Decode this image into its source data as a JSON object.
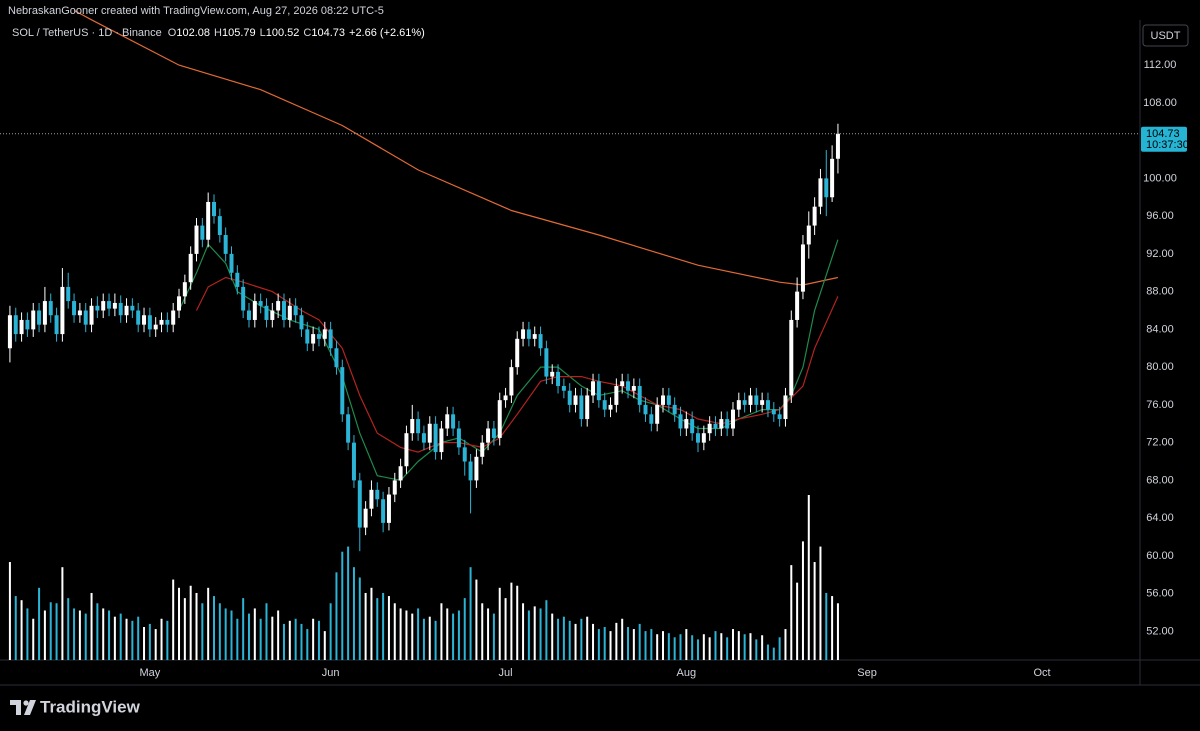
{
  "chart_data": {
    "type": "candlestick",
    "header": "NebraskanGooner created with TradingView.com, Aug 27, 2026 08:22 UTC-5",
    "title": "SOL / TetherUS · 1D · Binance",
    "ohlc_labels": [
      "O",
      "H",
      "L",
      "C"
    ],
    "change": "+2.66 (+2.61%)",
    "currency": "USDT",
    "countdown": "10:37:30",
    "brand": "TradingView",
    "up_color": "#ffffff",
    "down_color": "#2bb4d6",
    "ylim": [
      48.97,
      118.9
    ],
    "yticks": [
      {
        "value": 52,
        "label": "52.00"
      },
      {
        "value": 56,
        "label": "56.00"
      },
      {
        "value": 60,
        "label": "60.00"
      },
      {
        "value": 64,
        "label": "64.00"
      },
      {
        "value": 68,
        "label": "68.00"
      },
      {
        "value": 72,
        "label": "72.00"
      },
      {
        "value": 76,
        "label": "76.00"
      },
      {
        "value": 80,
        "label": "80.00"
      },
      {
        "value": 84,
        "label": "84.00"
      },
      {
        "value": 88,
        "label": "88.00"
      },
      {
        "value": 92,
        "label": "92.00"
      },
      {
        "value": 96,
        "label": "96.00"
      },
      {
        "value": 100,
        "label": "100.00"
      },
      {
        "value": 108,
        "label": "108.00"
      },
      {
        "value": 112,
        "label": "112.00"
      }
    ],
    "xlim": [
      -1.7,
      193.8
    ],
    "xticks": [
      {
        "value": 24,
        "label": "May"
      },
      {
        "value": 55,
        "label": "Jun"
      },
      {
        "value": 85,
        "label": "Jul"
      },
      {
        "value": 116,
        "label": "Aug"
      },
      {
        "value": 147,
        "label": "Sep"
      },
      {
        "value": 177,
        "label": "Oct"
      }
    ],
    "ohlc": [
      [
        82,
        86.5,
        80.5,
        85.5
      ],
      [
        85.5,
        86.3,
        82.7,
        83.5
      ],
      [
        83.5,
        85.8,
        82.7,
        85
      ],
      [
        85,
        85.8,
        83.2,
        84
      ],
      [
        84,
        86.8,
        83.2,
        86
      ],
      [
        86,
        86.8,
        83.7,
        84.5
      ],
      [
        84.5,
        88.5,
        83.7,
        87
      ],
      [
        87,
        87.8,
        84.7,
        85.5
      ],
      [
        85.5,
        86.3,
        82.7,
        83.5
      ],
      [
        83.5,
        90.5,
        82.7,
        88.5
      ],
      [
        88.5,
        90,
        86.2,
        87
      ],
      [
        87,
        87.8,
        84.7,
        85.5
      ],
      [
        85.5,
        86.8,
        84.7,
        86
      ],
      [
        86,
        86.8,
        83.7,
        84.5
      ],
      [
        84.5,
        87.3,
        83.7,
        86.5
      ],
      [
        86.5,
        87.5,
        85.2,
        86
      ],
      [
        86,
        87.8,
        85.2,
        87
      ],
      [
        87,
        87.8,
        85.4,
        86.2
      ],
      [
        86.2,
        87.8,
        85.4,
        86.8
      ],
      [
        86.8,
        87.6,
        84.7,
        85.5
      ],
      [
        85.5,
        87.3,
        84.7,
        86.5
      ],
      [
        86.5,
        87.3,
        85.2,
        86
      ],
      [
        86,
        86.8,
        83.7,
        84.5
      ],
      [
        84.5,
        86.3,
        83.7,
        85.5
      ],
      [
        85.5,
        86.3,
        83.2,
        84
      ],
      [
        84,
        85.3,
        83.2,
        84.5
      ],
      [
        84.5,
        85.8,
        83.7,
        85
      ],
      [
        85,
        85.8,
        83.7,
        84.5
      ],
      [
        84.5,
        86.8,
        83.7,
        86
      ],
      [
        86,
        88.3,
        85.2,
        87.5
      ],
      [
        87.5,
        89.8,
        86.7,
        89
      ],
      [
        89,
        92.8,
        88.2,
        92
      ],
      [
        92,
        95.8,
        91.2,
        95
      ],
      [
        95,
        95.8,
        92.7,
        93.5
      ],
      [
        93.5,
        98.5,
        92.7,
        97.5
      ],
      [
        97.5,
        98.3,
        95.2,
        96
      ],
      [
        96,
        96.8,
        93.2,
        94
      ],
      [
        94,
        94.8,
        91.2,
        92
      ],
      [
        92,
        92.8,
        89.2,
        90
      ],
      [
        90,
        90.8,
        87.7,
        88.5
      ],
      [
        88.5,
        89.3,
        85.2,
        86
      ],
      [
        86,
        86.8,
        84.2,
        85
      ],
      [
        85,
        87.8,
        84.2,
        87
      ],
      [
        87,
        87.8,
        85.7,
        86.5
      ],
      [
        86.5,
        87.3,
        84.2,
        85
      ],
      [
        85,
        86.8,
        84.2,
        86
      ],
      [
        86,
        87.8,
        85.2,
        87
      ],
      [
        87,
        87.8,
        84.2,
        85
      ],
      [
        85,
        87.3,
        84.2,
        86.5
      ],
      [
        86.5,
        87.3,
        84.7,
        85.5
      ],
      [
        85.5,
        86.3,
        83.2,
        84
      ],
      [
        84,
        84.8,
        81.7,
        82.5
      ],
      [
        82.5,
        84.3,
        81.7,
        83.5
      ],
      [
        83.5,
        84.3,
        82.2,
        83
      ],
      [
        83,
        84.8,
        82.2,
        84
      ],
      [
        84,
        84.8,
        81.2,
        82
      ],
      [
        82,
        82.8,
        79.2,
        80
      ],
      [
        80,
        80.8,
        74.2,
        75
      ],
      [
        75,
        75.8,
        71.2,
        72
      ],
      [
        72,
        72.8,
        67.2,
        68
      ],
      [
        68,
        68.8,
        60.5,
        63
      ],
      [
        63,
        65.8,
        62.2,
        65
      ],
      [
        65,
        68,
        64.2,
        67
      ],
      [
        67,
        67.8,
        65.2,
        66
      ],
      [
        66,
        66.8,
        62.5,
        63.5
      ],
      [
        63.5,
        67.3,
        62.7,
        66.5
      ],
      [
        66.5,
        68.8,
        65.7,
        68
      ],
      [
        68,
        70.3,
        67.2,
        69.5
      ],
      [
        69.5,
        73.8,
        68.7,
        73
      ],
      [
        73,
        76,
        72.2,
        74.5
      ],
      [
        74.5,
        75.3,
        72.2,
        73
      ],
      [
        73,
        73.8,
        71.2,
        72
      ],
      [
        72,
        74.8,
        71.2,
        74
      ],
      [
        74,
        74.8,
        70.2,
        71
      ],
      [
        71,
        74.3,
        70.2,
        73.5
      ],
      [
        73.5,
        75.8,
        72.7,
        75
      ],
      [
        75,
        75.8,
        72.7,
        73.5
      ],
      [
        73.5,
        74.3,
        70.7,
        71.5
      ],
      [
        71.5,
        72.3,
        68.5,
        70
      ],
      [
        70,
        70.8,
        64.5,
        68
      ],
      [
        68,
        71.3,
        67.2,
        70.5
      ],
      [
        70.5,
        72.8,
        69.7,
        72
      ],
      [
        72,
        74.3,
        71.2,
        73.5
      ],
      [
        73.5,
        74.3,
        71.7,
        72.5
      ],
      [
        72.5,
        77.3,
        71.7,
        76.5
      ],
      [
        76.5,
        77.8,
        75.7,
        77
      ],
      [
        77,
        80.8,
        76.2,
        80
      ],
      [
        80,
        83.8,
        79.2,
        83
      ],
      [
        83,
        84.8,
        82.2,
        84
      ],
      [
        84,
        84.8,
        82.2,
        83
      ],
      [
        83,
        84.3,
        82.2,
        83.5
      ],
      [
        83.5,
        84.3,
        81.2,
        82
      ],
      [
        82,
        82.8,
        78.2,
        79
      ],
      [
        79,
        80.3,
        78.2,
        79.5
      ],
      [
        79.5,
        80.3,
        77.2,
        78
      ],
      [
        78,
        78.8,
        76.7,
        77.5
      ],
      [
        77.5,
        78.3,
        75.2,
        76
      ],
      [
        76,
        77.8,
        75.2,
        77
      ],
      [
        77,
        77.8,
        73.7,
        74.5
      ],
      [
        74.5,
        77.8,
        73.7,
        77
      ],
      [
        77,
        79.3,
        76.2,
        78.5
      ],
      [
        78.5,
        79.3,
        75.7,
        76.5
      ],
      [
        76.5,
        77.3,
        74.7,
        75.5
      ],
      [
        75.5,
        76.8,
        74.7,
        76
      ],
      [
        76,
        78.8,
        75.2,
        78
      ],
      [
        78,
        79.3,
        77.2,
        78.5
      ],
      [
        78.5,
        79.3,
        76.7,
        77.5
      ],
      [
        77.5,
        78.8,
        76.7,
        78
      ],
      [
        78,
        78.8,
        75.2,
        76
      ],
      [
        76,
        76.8,
        74.2,
        75
      ],
      [
        75,
        75.8,
        73.2,
        74
      ],
      [
        74,
        76.8,
        73.2,
        76
      ],
      [
        76,
        77.8,
        75.2,
        77
      ],
      [
        77,
        77.8,
        75.2,
        76
      ],
      [
        76,
        76.8,
        74.2,
        75
      ],
      [
        75,
        75.8,
        72.7,
        73.5
      ],
      [
        73.5,
        75.3,
        72.7,
        74.5
      ],
      [
        74.5,
        75.3,
        72.2,
        73
      ],
      [
        73,
        73.8,
        71,
        72
      ],
      [
        72,
        73.8,
        71.2,
        73
      ],
      [
        73,
        74.8,
        72.2,
        74
      ],
      [
        74,
        74.8,
        72.7,
        73.5
      ],
      [
        73.5,
        75.3,
        72.7,
        74.5
      ],
      [
        74.5,
        75.3,
        72.7,
        73.5
      ],
      [
        73.5,
        76.3,
        72.7,
        75.5
      ],
      [
        75.5,
        77.3,
        74.7,
        76.5
      ],
      [
        76.5,
        77.3,
        75.2,
        76
      ],
      [
        76,
        77.8,
        75.2,
        77
      ],
      [
        77,
        77.8,
        75.2,
        76
      ],
      [
        76,
        77.3,
        75.2,
        76.5
      ],
      [
        76.5,
        77.3,
        74.7,
        75.5
      ],
      [
        75.5,
        76.3,
        74.2,
        75
      ],
      [
        75,
        75.8,
        73.7,
        74.5
      ],
      [
        74.5,
        77.8,
        73.7,
        77
      ],
      [
        77,
        86,
        76.2,
        85
      ],
      [
        85,
        89.5,
        84.2,
        88
      ],
      [
        88,
        94,
        87.2,
        93
      ],
      [
        93,
        96.5,
        91.5,
        95
      ],
      [
        95,
        98,
        94,
        97
      ],
      [
        97,
        101,
        96.2,
        100
      ],
      [
        100,
        103,
        96,
        98
      ],
      [
        98,
        103.5,
        97.5,
        102.07
      ],
      [
        102.08,
        105.79,
        100.52,
        104.73
      ]
    ],
    "volume": [
      95,
      62,
      58,
      50,
      40,
      70,
      48,
      56,
      55,
      90,
      60,
      50,
      48,
      45,
      65,
      55,
      50,
      48,
      42,
      45,
      40,
      38,
      42,
      32,
      35,
      30,
      40,
      38,
      78,
      70,
      60,
      72,
      65,
      55,
      70,
      62,
      55,
      50,
      48,
      40,
      60,
      45,
      50,
      40,
      55,
      42,
      48,
      35,
      38,
      40,
      35,
      30,
      40,
      38,
      28,
      55,
      85,
      105,
      110,
      90,
      80,
      65,
      70,
      60,
      65,
      62,
      55,
      50,
      48,
      45,
      50,
      40,
      42,
      38,
      55,
      50,
      45,
      48,
      60,
      90,
      78,
      55,
      50,
      45,
      70,
      60,
      75,
      72,
      55,
      48,
      52,
      50,
      58,
      45,
      40,
      42,
      38,
      35,
      40,
      42,
      35,
      30,
      32,
      28,
      36,
      40,
      32,
      30,
      35,
      28,
      30,
      25,
      28,
      26,
      22,
      25,
      30,
      24,
      20,
      25,
      22,
      28,
      26,
      22,
      30,
      28,
      25,
      26,
      20,
      24,
      15,
      12,
      22,
      30,
      92,
      75,
      115,
      160,
      95,
      110,
      65,
      62,
      55
    ],
    "lines": [
      {
        "color": "#e06a35",
        "x": [
          11,
          14,
          29,
          43,
          57,
          70,
          86,
          101,
          118,
          132,
          136,
          142
        ],
        "values": [
          117.8,
          116.8,
          112,
          109.4,
          105.6,
          100.9,
          96.6,
          94,
          90.8,
          89,
          88.7,
          89.5
        ]
      },
      {
        "color": "#1f8a4c",
        "x": [
          29,
          32,
          34,
          37,
          39,
          43,
          48,
          53,
          57,
          60,
          63,
          67,
          70,
          74,
          77,
          81,
          84,
          87,
          91,
          94,
          98,
          101,
          105,
          108,
          111,
          115,
          118,
          122,
          125,
          129,
          132,
          134,
          136,
          138,
          142
        ],
        "values": [
          86,
          90,
          93,
          91,
          88,
          86.5,
          85,
          84,
          79,
          73,
          68.5,
          68,
          70,
          72,
          72.5,
          71,
          73,
          77,
          80,
          80,
          78,
          77,
          77.5,
          76.5,
          76,
          74.5,
          73.5,
          73.5,
          74.5,
          75.5,
          75.5,
          77,
          80,
          86,
          93.5
        ]
      },
      {
        "color": "#b3241f",
        "x": [
          32,
          34,
          37,
          40,
          45,
          50,
          53,
          57,
          60,
          63,
          67,
          70,
          74,
          77,
          81,
          84,
          87,
          91,
          94,
          98,
          101,
          105,
          108,
          111,
          115,
          118,
          122,
          125,
          129,
          132,
          136,
          138,
          142
        ],
        "values": [
          86,
          88.5,
          89.5,
          89,
          88,
          86,
          85,
          82,
          77,
          73,
          71.5,
          71,
          72,
          72,
          71.5,
          72.5,
          75,
          78.5,
          79,
          79,
          78.5,
          78,
          77,
          76,
          75.5,
          74.5,
          74,
          74.5,
          75,
          75.5,
          78,
          82,
          87.5
        ]
      }
    ]
  }
}
